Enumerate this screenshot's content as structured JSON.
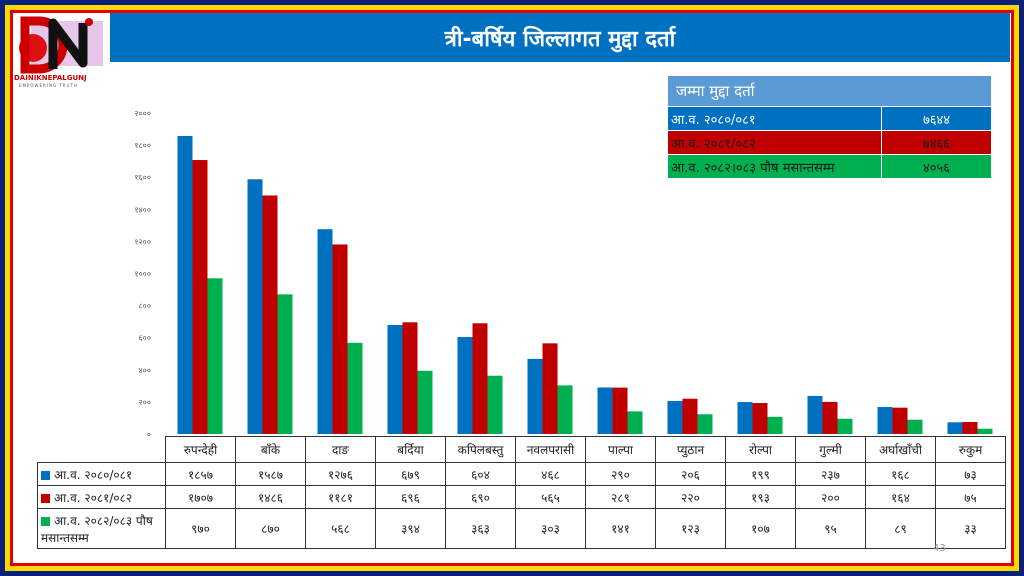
{
  "title": "त्री-बर्षिय जिल्लागत मुद्दा दर्ता",
  "logo": {
    "text": "DAINIKNEPALGUNJ",
    "tagline": "EMPOWERING TRUTH"
  },
  "summary": {
    "header": "जम्मा मुद्दा दर्ता",
    "rows": [
      {
        "label": "आ.व. २०८०/०८१",
        "value": "७६४४",
        "color": "#0070c0",
        "text_color": "#ffffff"
      },
      {
        "label": "आ.व. २०८१/०८२",
        "value": "७४६६",
        "color": "#c00000",
        "text_color": "#1a1a1a"
      },
      {
        "label": "आ.व. २०८२।०८३ पौष मसान्तसम्म",
        "value": "४०५६",
        "color": "#00b050",
        "text_color": "#1a1a1a"
      }
    ]
  },
  "chart_data": {
    "type": "bar",
    "ylim": [
      0,
      2000
    ],
    "y_ticks": [
      0,
      200,
      400,
      600,
      800,
      1000,
      1200,
      1400,
      1600,
      1800,
      2000
    ],
    "y_tick_labels": [
      "०",
      "२००",
      "४००",
      "६००",
      "८००",
      "१०००",
      "१२००",
      "१४००",
      "१६००",
      "१८००",
      "२०००"
    ],
    "categories": [
      "रुपन्देही",
      "बाँके",
      "दाङ",
      "बर्दिया",
      "कपिलबस्तु",
      "नवलपरासी",
      "पाल्पा",
      "प्युठान",
      "रोल्पा",
      "गुल्मी",
      "अर्घाखाँची",
      "रुकुम"
    ],
    "series": [
      {
        "name": "आ.व. २०८०/०८१",
        "color": "#0070c0",
        "values": [
          1857,
          1587,
          1276,
          679,
          604,
          468,
          290,
          206,
          199,
          237,
          168,
          73
        ],
        "labels": [
          "१८५७",
          "१५८७",
          "१२७६",
          "६७९",
          "६०४",
          "४६८",
          "२९०",
          "२०६",
          "१९९",
          "२३७",
          "१६८",
          "७३"
        ]
      },
      {
        "name": "आ.व. २०८१/०८२",
        "color": "#c00000",
        "values": [
          1707,
          1486,
          1181,
          696,
          690,
          565,
          289,
          220,
          193,
          200,
          164,
          75
        ],
        "labels": [
          "१७०७",
          "१४८६",
          "११८१",
          "६९६",
          "६९०",
          "५६५",
          "२८९",
          "२२०",
          "१९३",
          "२००",
          "१६४",
          "७५"
        ]
      },
      {
        "name": "आ.व. २०८२/०८३ पौष मसान्तसम्म",
        "color": "#00b050",
        "values": [
          970,
          870,
          568,
          394,
          363,
          303,
          141,
          123,
          107,
          95,
          89,
          33
        ],
        "labels": [
          "९७०",
          "८७०",
          "५६८",
          "३९४",
          "३६३",
          "३०३",
          "१४१",
          "१२३",
          "१०७",
          "९५",
          "८९",
          "३३"
        ]
      }
    ],
    "grid": false,
    "legend": "data-table"
  },
  "slide_number": "43"
}
